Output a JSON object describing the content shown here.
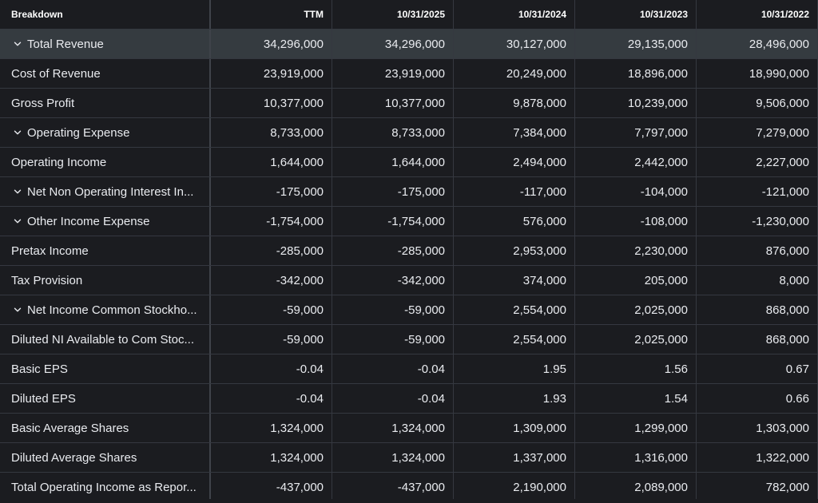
{
  "header": {
    "breakdown": "Breakdown",
    "columns": [
      "TTM",
      "10/31/2025",
      "10/31/2024",
      "10/31/2023",
      "10/31/2022"
    ]
  },
  "rows": [
    {
      "label": "Total Revenue",
      "expandable": true,
      "values": [
        "34,296,000",
        "34,296,000",
        "30,127,000",
        "29,135,000",
        "28,496,000"
      ]
    },
    {
      "label": "Cost of Revenue",
      "expandable": false,
      "values": [
        "23,919,000",
        "23,919,000",
        "20,249,000",
        "18,896,000",
        "18,990,000"
      ]
    },
    {
      "label": "Gross Profit",
      "expandable": false,
      "values": [
        "10,377,000",
        "10,377,000",
        "9,878,000",
        "10,239,000",
        "9,506,000"
      ]
    },
    {
      "label": "Operating Expense",
      "expandable": true,
      "values": [
        "8,733,000",
        "8,733,000",
        "7,384,000",
        "7,797,000",
        "7,279,000"
      ]
    },
    {
      "label": "Operating Income",
      "expandable": false,
      "values": [
        "1,644,000",
        "1,644,000",
        "2,494,000",
        "2,442,000",
        "2,227,000"
      ]
    },
    {
      "label": "Net Non Operating Interest In...",
      "expandable": true,
      "values": [
        "-175,000",
        "-175,000",
        "-117,000",
        "-104,000",
        "-121,000"
      ]
    },
    {
      "label": "Other Income Expense",
      "expandable": true,
      "values": [
        "-1,754,000",
        "-1,754,000",
        "576,000",
        "-108,000",
        "-1,230,000"
      ]
    },
    {
      "label": "Pretax Income",
      "expandable": false,
      "values": [
        "-285,000",
        "-285,000",
        "2,953,000",
        "2,230,000",
        "876,000"
      ]
    },
    {
      "label": "Tax Provision",
      "expandable": false,
      "values": [
        "-342,000",
        "-342,000",
        "374,000",
        "205,000",
        "8,000"
      ]
    },
    {
      "label": "Net Income Common Stockho...",
      "expandable": true,
      "values": [
        "-59,000",
        "-59,000",
        "2,554,000",
        "2,025,000",
        "868,000"
      ]
    },
    {
      "label": "Diluted NI Available to Com Stoc...",
      "expandable": false,
      "values": [
        "-59,000",
        "-59,000",
        "2,554,000",
        "2,025,000",
        "868,000"
      ]
    },
    {
      "label": "Basic EPS",
      "expandable": false,
      "values": [
        "-0.04",
        "-0.04",
        "1.95",
        "1.56",
        "0.67"
      ]
    },
    {
      "label": "Diluted EPS",
      "expandable": false,
      "values": [
        "-0.04",
        "-0.04",
        "1.93",
        "1.54",
        "0.66"
      ]
    },
    {
      "label": "Basic Average Shares",
      "expandable": false,
      "values": [
        "1,324,000",
        "1,324,000",
        "1,309,000",
        "1,299,000",
        "1,303,000"
      ]
    },
    {
      "label": "Diluted Average Shares",
      "expandable": false,
      "values": [
        "1,324,000",
        "1,324,000",
        "1,337,000",
        "1,316,000",
        "1,322,000"
      ]
    },
    {
      "label": "Total Operating Income as Repor...",
      "expandable": false,
      "values": [
        "-437,000",
        "-437,000",
        "2,190,000",
        "2,089,000",
        "782,000"
      ]
    }
  ],
  "colors": {
    "background": "#1b1c20",
    "highlight_row": "#353b40",
    "grid": "#353840",
    "text": "#e9ebef"
  },
  "icons": {
    "expand": "chevron-down-icon"
  }
}
